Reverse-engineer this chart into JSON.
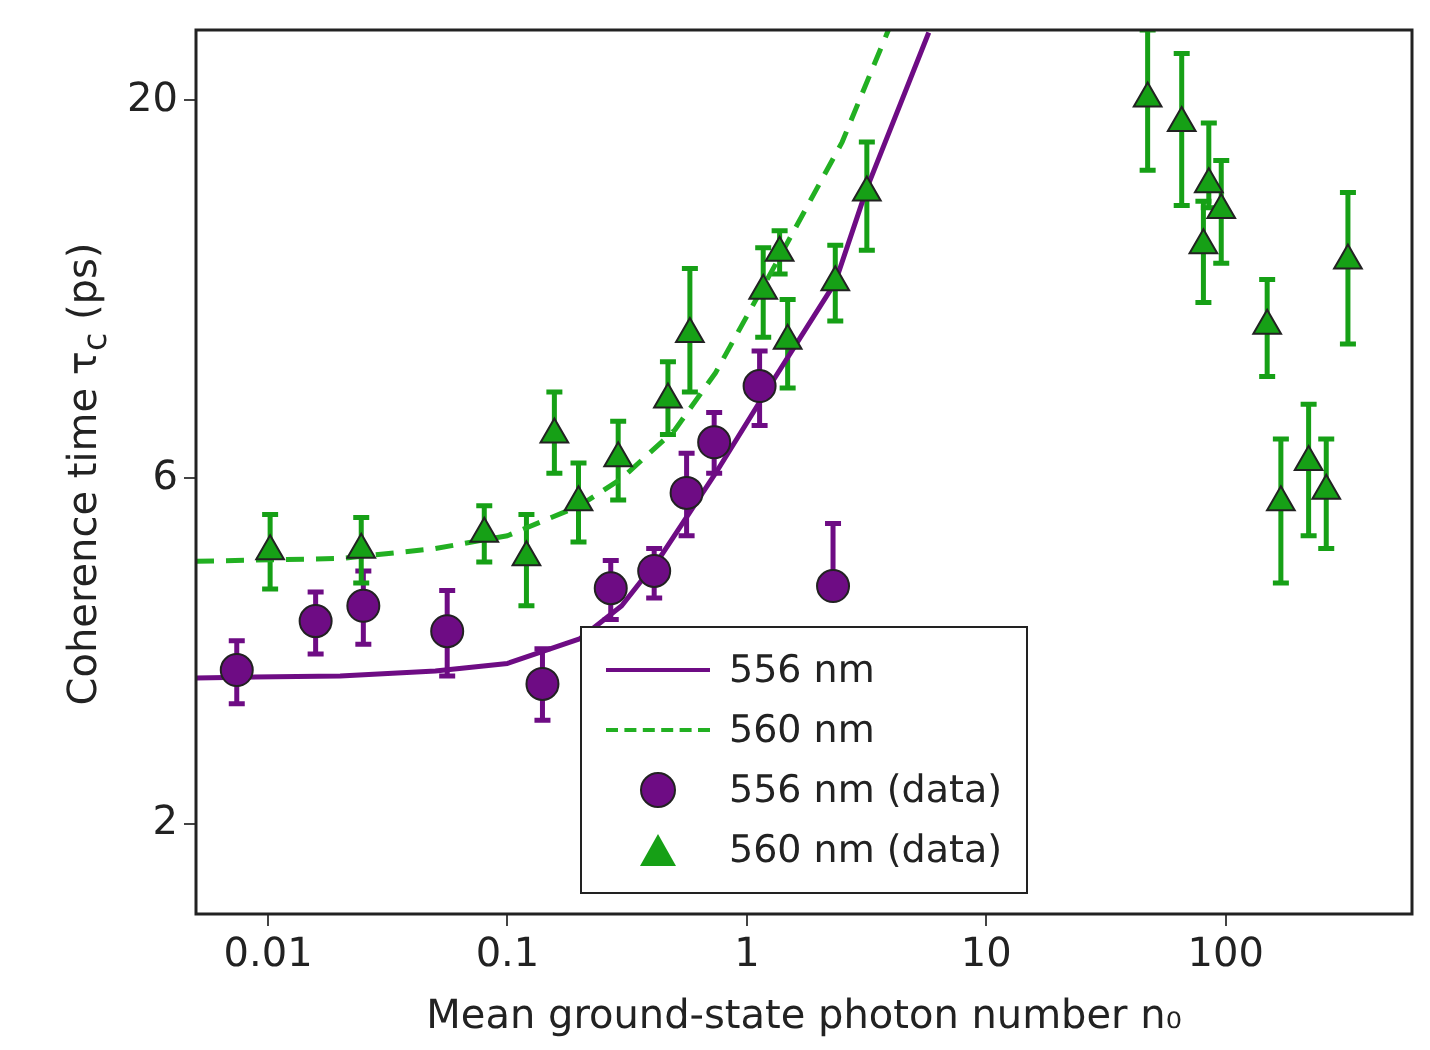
{
  "chart_data": {
    "type": "scatter",
    "xlabel": "Mean ground-state photon number n₀",
    "ylabel": "Coherence time τ$_{c}$ (ps)",
    "log": "xy",
    "grid": false,
    "legend": "bottom",
    "xlim": [
      0.005,
      600
    ],
    "ylim": [
      1.5,
      25
    ],
    "xticks": [
      0.01,
      0.1,
      1,
      10,
      100
    ],
    "yticks": [
      2,
      6,
      20
    ],
    "series": [
      {
        "name": "556 nm",
        "type": "line",
        "color": "#6e0c84",
        "line_style": "solid",
        "marker": "none",
        "x": [
          0.005,
          0.02,
          0.05,
          0.1,
          0.2,
          0.3,
          0.44,
          0.74,
          1.2,
          2.34,
          3.17,
          5.75
        ],
        "values": [
          3.18,
          3.2,
          3.25,
          3.33,
          3.6,
          4.0,
          4.7,
          6.1,
          7.9,
          11.2,
          15.1,
          24.8
        ]
      },
      {
        "name": "560 nm",
        "type": "line",
        "color": "#22b022",
        "line_style": "dashed",
        "marker": "none",
        "x": [
          0.005,
          0.02,
          0.05,
          0.1,
          0.2,
          0.3,
          0.5,
          0.74,
          1.4,
          2.5,
          3.9
        ],
        "values": [
          4.61,
          4.65,
          4.8,
          5.0,
          5.5,
          6.0,
          7.0,
          8.4,
          12.3,
          17.5,
          25
        ]
      },
      {
        "name": "556 nm (data)",
        "type": "scatter",
        "color": "#6e0c84",
        "marker": "circle",
        "x": [
          0.0074,
          0.0158,
          0.025,
          0.056,
          0.14,
          0.27,
          0.41,
          0.56,
          0.73,
          1.13,
          2.29
        ],
        "values": [
          3.26,
          3.81,
          4.0,
          3.69,
          3.12,
          4.23,
          4.47,
          5.73,
          6.73,
          8.05,
          4.26
        ],
        "errors": [
          [
            2.93,
            3.58
          ],
          [
            3.43,
            4.18
          ],
          [
            3.54,
            4.47
          ],
          [
            3.2,
            4.2
          ],
          [
            2.78,
            3.49
          ],
          [
            3.83,
            4.62
          ],
          [
            4.1,
            4.8
          ],
          [
            5.0,
            6.5
          ],
          [
            6.1,
            7.4
          ],
          [
            7.1,
            9.0
          ],
          [
            4.26,
            5.2
          ]
        ]
      },
      {
        "name": "560 nm (data)",
        "type": "scatter",
        "color": "#16a016",
        "marker": "triangle",
        "x": [
          0.0102,
          0.0245,
          0.08,
          0.12,
          0.157,
          0.198,
          0.29,
          0.468,
          0.578,
          1.17,
          1.37,
          1.48,
          2.34,
          3.17,
          47.2,
          65.5,
          85,
          95.8,
          80.7,
          149,
          170,
          222,
          263,
          324
        ],
        "values": [
          4.76,
          4.78,
          5.03,
          4.67,
          6.9,
          5.56,
          6.4,
          7.71,
          9.5,
          10.9,
          12.3,
          9.3,
          11.2,
          14.9,
          20.1,
          18.6,
          15.3,
          14.1,
          12.6,
          9.75,
          5.56,
          6.32,
          5.77,
          12.0
        ],
        "errors": [
          [
            4.22,
            5.35
          ],
          [
            4.3,
            5.3
          ],
          [
            4.6,
            5.5
          ],
          [
            4.0,
            5.35
          ],
          [
            6.1,
            7.9
          ],
          [
            4.9,
            6.3
          ],
          [
            5.6,
            7.2
          ],
          [
            6.9,
            8.7
          ],
          [
            7.9,
            11.7
          ],
          [
            9.4,
            12.5
          ],
          [
            11.5,
            13.2
          ],
          [
            8.0,
            10.6
          ],
          [
            9.9,
            12.6
          ],
          [
            12.4,
            17.5
          ],
          [
            16.0,
            25
          ],
          [
            14.3,
            23.2
          ],
          [
            14.2,
            18.6
          ],
          [
            11.9,
            16.5
          ],
          [
            10.5,
            14.5
          ],
          [
            8.3,
            11.3
          ],
          [
            4.3,
            6.8
          ],
          [
            5.0,
            7.6
          ],
          [
            4.8,
            6.8
          ],
          [
            9.2,
            14.9
          ]
        ]
      }
    ]
  }
}
